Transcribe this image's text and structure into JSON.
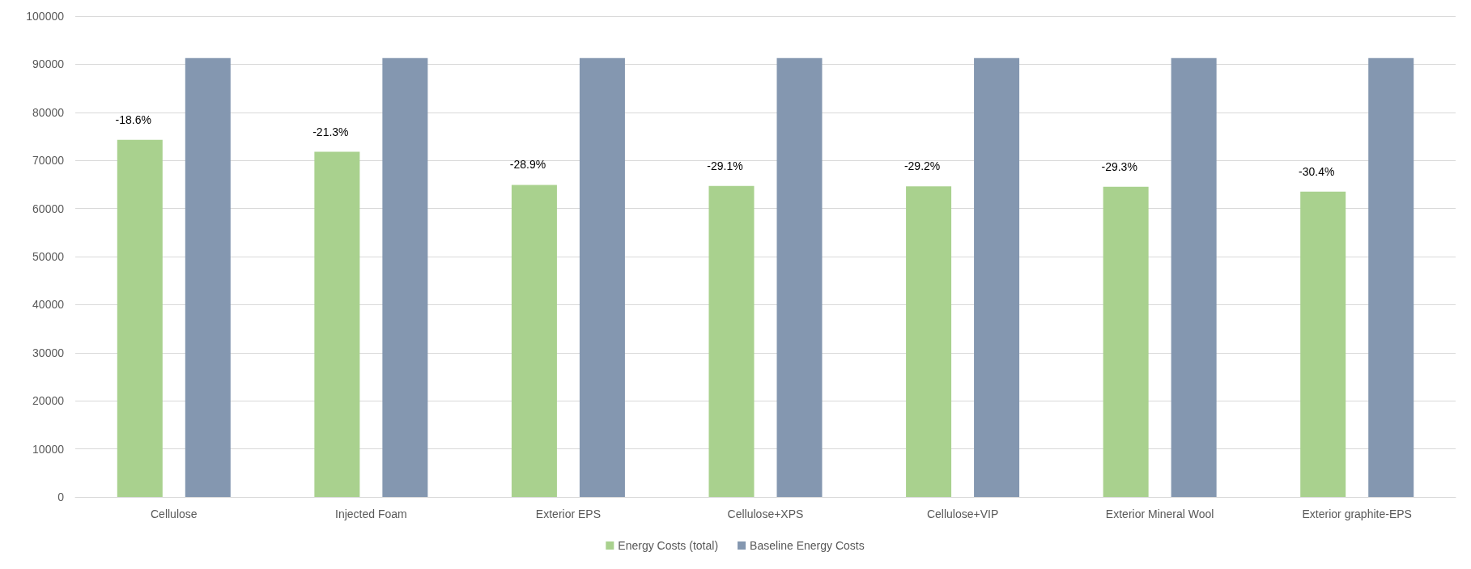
{
  "chart_data": {
    "type": "bar",
    "categories": [
      "Cellulose",
      "Injected Foam",
      "Exterior EPS",
      "Cellulose+XPS",
      "Cellulose+VIP",
      "Exterior Mineral Wool",
      "Exterior graphite-EPS"
    ],
    "series": [
      {
        "name": "Energy Costs (total)",
        "color": "#a9d18e",
        "values": [
          74300,
          71800,
          64900,
          64700,
          64600,
          64500,
          63500
        ]
      },
      {
        "name": "Baseline Energy Costs",
        "color": "#8497b0",
        "values": [
          91300,
          91300,
          91300,
          91300,
          91300,
          91300,
          91300
        ]
      }
    ],
    "annotations": [
      "-18.6%",
      "-21.3%",
      "-28.9%",
      "-29.1%",
      "-29.2%",
      "-29.3%",
      "-30.4%"
    ],
    "ylim": [
      0,
      100000
    ],
    "yticks": [
      0,
      10000,
      20000,
      30000,
      40000,
      50000,
      60000,
      70000,
      80000,
      90000,
      100000
    ],
    "grid": "y",
    "legend": "bottom"
  }
}
